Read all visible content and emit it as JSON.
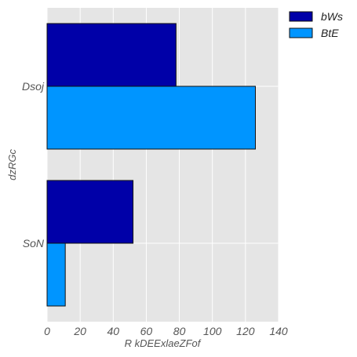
{
  "chart_data": {
    "type": "bar",
    "orientation": "horizontal",
    "categories": [
      "SoN",
      "Dsoj"
    ],
    "series": [
      {
        "name": "bWs",
        "values": [
          52,
          78
        ],
        "color": "#0000a8"
      },
      {
        "name": "BtE",
        "values": [
          11,
          126
        ],
        "color": "#0095ff"
      }
    ],
    "title": "",
    "xlabel": "R kDEExlaeZFof",
    "ylabel": "dzRGc",
    "xlim": [
      0,
      140
    ],
    "xticks": [
      "0",
      "20",
      "40",
      "60",
      "80",
      "100",
      "120",
      "140"
    ],
    "grid": true,
    "legend": "top-right",
    "background_color": "#e5e5e5"
  }
}
